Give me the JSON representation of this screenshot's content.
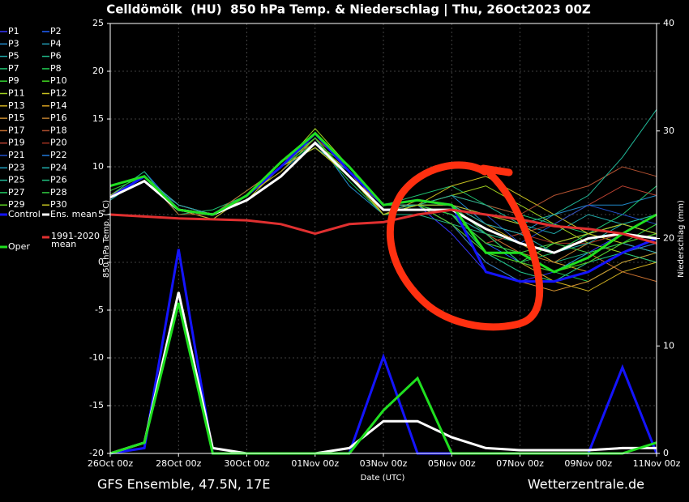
{
  "chart_data": {
    "type": "line",
    "title": "Celldömölk  (HU)  850 hPa Temp. & Niederschlag | Thu, 26Oct2023 00Z",
    "x_label": "Date (UTC)",
    "y_label": "850 hPa Temp. (°C)",
    "y2_label": "Niederschlag (mm)",
    "footer_left": "GFS Ensemble, 47.5N, 17E",
    "footer_right": "Wetterzentrale.de",
    "x": [
      0,
      1,
      2,
      3,
      4,
      5,
      6,
      7,
      8,
      9,
      10,
      11,
      12,
      13,
      14,
      15,
      16
    ],
    "xlim": [
      0,
      16
    ],
    "xticks": [
      {
        "value": 0,
        "label": "26Oct 00z"
      },
      {
        "value": 2,
        "label": "28Oct 00z"
      },
      {
        "value": 4,
        "label": "30Oct 00z"
      },
      {
        "value": 6,
        "label": "01Nov 00z"
      },
      {
        "value": 8,
        "label": "03Nov 00z"
      },
      {
        "value": 10,
        "label": "05Nov 00z"
      },
      {
        "value": 12,
        "label": "07Nov 00z"
      },
      {
        "value": 14,
        "label": "09Nov 00z"
      },
      {
        "value": 16,
        "label": "11Nov 00z"
      }
    ],
    "ylim": [
      -20,
      25
    ],
    "yticks": [
      -20,
      -15,
      -10,
      -5,
      0,
      5,
      10,
      15,
      20,
      25
    ],
    "y2lim": [
      0,
      40
    ],
    "y2ticks": [
      0,
      10,
      20,
      30,
      40
    ],
    "grid": true,
    "series": [
      {
        "name": "P1",
        "color": "#3535ff",
        "values": [
          7,
          9,
          5,
          5,
          7,
          10,
          13,
          9,
          5,
          6,
          3,
          -1,
          -2,
          -1,
          1,
          3,
          2
        ]
      },
      {
        "name": "P2",
        "color": "#2060ff",
        "values": [
          7,
          9.5,
          5.5,
          5,
          7.5,
          10,
          12,
          9,
          6,
          6,
          5,
          2,
          0,
          2,
          3,
          4,
          3
        ]
      },
      {
        "name": "P3",
        "color": "#2088c8",
        "values": [
          7,
          8.5,
          6,
          5,
          7,
          10.5,
          13,
          8,
          5,
          6,
          7,
          4,
          3,
          5,
          6,
          6,
          7
        ]
      },
      {
        "name": "P4",
        "color": "#2098b0",
        "values": [
          7,
          9,
          5.5,
          4.5,
          7,
          9.5,
          12.5,
          9,
          5,
          6,
          4,
          1,
          -1,
          -2,
          0,
          2,
          1
        ]
      },
      {
        "name": "P5",
        "color": "#20a8a8",
        "values": [
          6.5,
          9,
          5,
          5,
          6.5,
          10,
          13.5,
          10,
          6,
          6,
          6,
          5,
          4,
          3,
          5,
          4,
          3
        ]
      },
      {
        "name": "P6",
        "color": "#20b888",
        "values": [
          7,
          9,
          6,
          5,
          7,
          10,
          12,
          9,
          5,
          5,
          4,
          3,
          2,
          0,
          1,
          2,
          3
        ]
      },
      {
        "name": "P7",
        "color": "#20c070",
        "values": [
          7,
          9.5,
          5,
          5.5,
          7,
          10,
          13,
          9,
          6,
          7,
          8,
          6,
          5,
          4,
          3,
          5,
          8
        ]
      },
      {
        "name": "P8",
        "color": "#20c850",
        "values": [
          7,
          9,
          5.5,
          5,
          7,
          10.5,
          12.5,
          8.5,
          5,
          6,
          5,
          2,
          1,
          -1,
          -2,
          0,
          1
        ]
      },
      {
        "name": "P9",
        "color": "#30d030",
        "values": [
          7.5,
          9,
          5.5,
          5,
          7.5,
          10,
          13,
          9,
          5.5,
          6,
          6,
          4,
          2,
          1,
          3,
          4,
          5
        ]
      },
      {
        "name": "P10",
        "color": "#40d820",
        "values": [
          7,
          9,
          5,
          5,
          7,
          10,
          12.5,
          10,
          6,
          6,
          5,
          1,
          0,
          2,
          3,
          2,
          4
        ]
      },
      {
        "name": "P11",
        "color": "#a0d020",
        "values": [
          7,
          9,
          6,
          5,
          7,
          10,
          14,
          10,
          6,
          6,
          7,
          8,
          6,
          4,
          2,
          1,
          0
        ]
      },
      {
        "name": "P12",
        "color": "#c8c020",
        "values": [
          7,
          9,
          5.5,
          5,
          6.5,
          10,
          12,
          9,
          5,
          6,
          8,
          9,
          7,
          5,
          3,
          2,
          1
        ]
      },
      {
        "name": "P13",
        "color": "#d0b020",
        "values": [
          7,
          9,
          5.5,
          4.5,
          7,
          9.5,
          13,
          9,
          5.5,
          6,
          5,
          3,
          0,
          -2,
          -3,
          -1,
          0
        ]
      },
      {
        "name": "P14",
        "color": "#d8a020",
        "values": [
          7,
          8.5,
          5.5,
          5,
          7,
          10,
          12.5,
          9.5,
          5,
          6.5,
          6,
          4,
          2,
          0,
          -1,
          1,
          2
        ]
      },
      {
        "name": "P15",
        "color": "#d09030",
        "values": [
          7,
          9,
          6,
          5,
          7,
          10,
          13,
          9,
          5,
          6,
          4,
          0,
          -2,
          -3,
          -2,
          0,
          1
        ]
      },
      {
        "name": "P16",
        "color": "#c08030",
        "values": [
          7,
          9,
          5.5,
          5,
          7,
          10,
          12,
          9,
          6,
          6,
          5,
          2,
          1,
          0,
          2,
          3,
          2
        ]
      },
      {
        "name": "P17",
        "color": "#c87030",
        "values": [
          7,
          9,
          5.5,
          5,
          7.5,
          10,
          13,
          10,
          5,
          6,
          6,
          3,
          1,
          2,
          1,
          -1,
          -2
        ]
      },
      {
        "name": "P18",
        "color": "#b05030",
        "values": [
          7,
          9,
          5,
          5,
          7,
          10.5,
          12.5,
          9,
          5.5,
          6,
          7,
          6,
          5,
          7,
          8,
          10,
          9
        ]
      },
      {
        "name": "P19",
        "color": "#b84030",
        "values": [
          7,
          9,
          5.5,
          5,
          7,
          10,
          13,
          9,
          5,
          6,
          5,
          2,
          3,
          4,
          6,
          8,
          7
        ]
      },
      {
        "name": "P20",
        "color": "#a03020",
        "values": [
          7,
          9,
          5.5,
          5,
          7,
          10,
          12.5,
          9,
          5,
          6,
          6,
          4,
          3,
          2,
          2,
          3,
          2
        ]
      },
      {
        "name": "P21",
        "color": "#2050c8",
        "values": [
          7,
          9,
          5.5,
          5,
          7,
          10,
          13,
          9,
          5.5,
          6,
          6,
          5,
          2,
          4,
          6,
          5,
          4
        ]
      },
      {
        "name": "P22",
        "color": "#2078d8",
        "values": [
          7,
          9,
          5.5,
          5,
          7,
          10,
          12.5,
          9,
          5,
          6,
          4,
          0,
          -2,
          -2,
          -1,
          1,
          2
        ]
      },
      {
        "name": "P23",
        "color": "#20a0c0",
        "values": [
          7,
          9,
          6,
          5,
          7,
          10,
          13,
          9,
          5,
          6,
          5,
          3,
          0,
          -1,
          1,
          2,
          1
        ]
      },
      {
        "name": "P24",
        "color": "#20b0b0",
        "values": [
          7,
          9,
          5.5,
          5,
          7,
          10,
          12,
          9.5,
          6,
          6,
          6,
          4,
          3,
          1,
          2,
          4,
          5
        ]
      },
      {
        "name": "P25",
        "color": "#20b898",
        "values": [
          7,
          9,
          5.5,
          5,
          7,
          10,
          13,
          9,
          5,
          6,
          7,
          6,
          4,
          5,
          7,
          11,
          16
        ]
      },
      {
        "name": "P26",
        "color": "#20c080",
        "values": [
          7,
          9,
          5.5,
          5,
          7,
          10,
          12.5,
          9,
          5.5,
          6,
          5,
          1,
          -1,
          -2,
          0,
          1,
          0
        ]
      },
      {
        "name": "P27",
        "color": "#20c860",
        "values": [
          7,
          9,
          5.5,
          5,
          7,
          10,
          13,
          9,
          5,
          6,
          6,
          3,
          0,
          1,
          3,
          4,
          3
        ]
      },
      {
        "name": "P28",
        "color": "#30c840",
        "values": [
          7,
          9,
          5.5,
          5,
          7,
          10,
          12.5,
          9,
          5,
          6,
          5,
          2,
          1,
          2,
          1,
          2,
          4
        ]
      },
      {
        "name": "P29",
        "color": "#58d020",
        "values": [
          7,
          9,
          5.5,
          5,
          7,
          10,
          13,
          9,
          5,
          6,
          4,
          1,
          0,
          -1,
          0,
          2,
          3
        ]
      },
      {
        "name": "P30",
        "color": "#c0c020",
        "values": [
          7,
          9,
          5.5,
          5,
          7,
          10,
          12,
          9,
          5,
          6,
          6,
          5,
          4,
          2,
          3,
          4,
          3
        ]
      },
      {
        "name": "Control",
        "color": "#1414ff",
        "values": [
          6.8,
          9,
          5.5,
          5,
          7,
          10,
          13.5,
          9.5,
          6,
          6.5,
          6,
          -1,
          -2,
          -2,
          -1,
          1,
          2.5
        ],
        "precip": [
          0,
          0.5,
          19,
          0,
          0,
          0,
          0,
          0,
          9,
          0,
          0,
          0,
          0,
          0,
          0,
          8,
          0
        ]
      },
      {
        "name": "Ens. mean",
        "color": "#ffffff",
        "values": [
          6.8,
          8.5,
          5.5,
          5,
          6.5,
          9,
          12.5,
          9,
          5.5,
          5.5,
          5.5,
          3.5,
          2,
          1,
          2.5,
          3,
          2.5
        ],
        "precip": [
          0,
          1,
          15,
          0.5,
          0,
          0,
          0,
          0.5,
          3,
          3,
          1.5,
          0.5,
          0.3,
          0.3,
          0.3,
          0.5,
          0.5
        ]
      },
      {
        "name": "Oper",
        "color": "#20e020",
        "values": [
          8,
          9,
          5.5,
          5,
          7,
          10.5,
          13.5,
          10,
          6,
          6.5,
          6,
          1,
          1,
          -1,
          0.5,
          3,
          5
        ],
        "precip": [
          0,
          1,
          14,
          0,
          0,
          0,
          0,
          0,
          4,
          7,
          0,
          0,
          0,
          0,
          0,
          0,
          1
        ]
      },
      {
        "name": "1991-2020 mean",
        "color": "#e03030",
        "values": [
          5,
          4.8,
          4.6,
          4.5,
          4.4,
          4,
          3,
          4,
          4.2,
          5,
          5.5,
          5,
          4.5,
          3.8,
          3.5,
          3,
          2
        ]
      }
    ]
  }
}
